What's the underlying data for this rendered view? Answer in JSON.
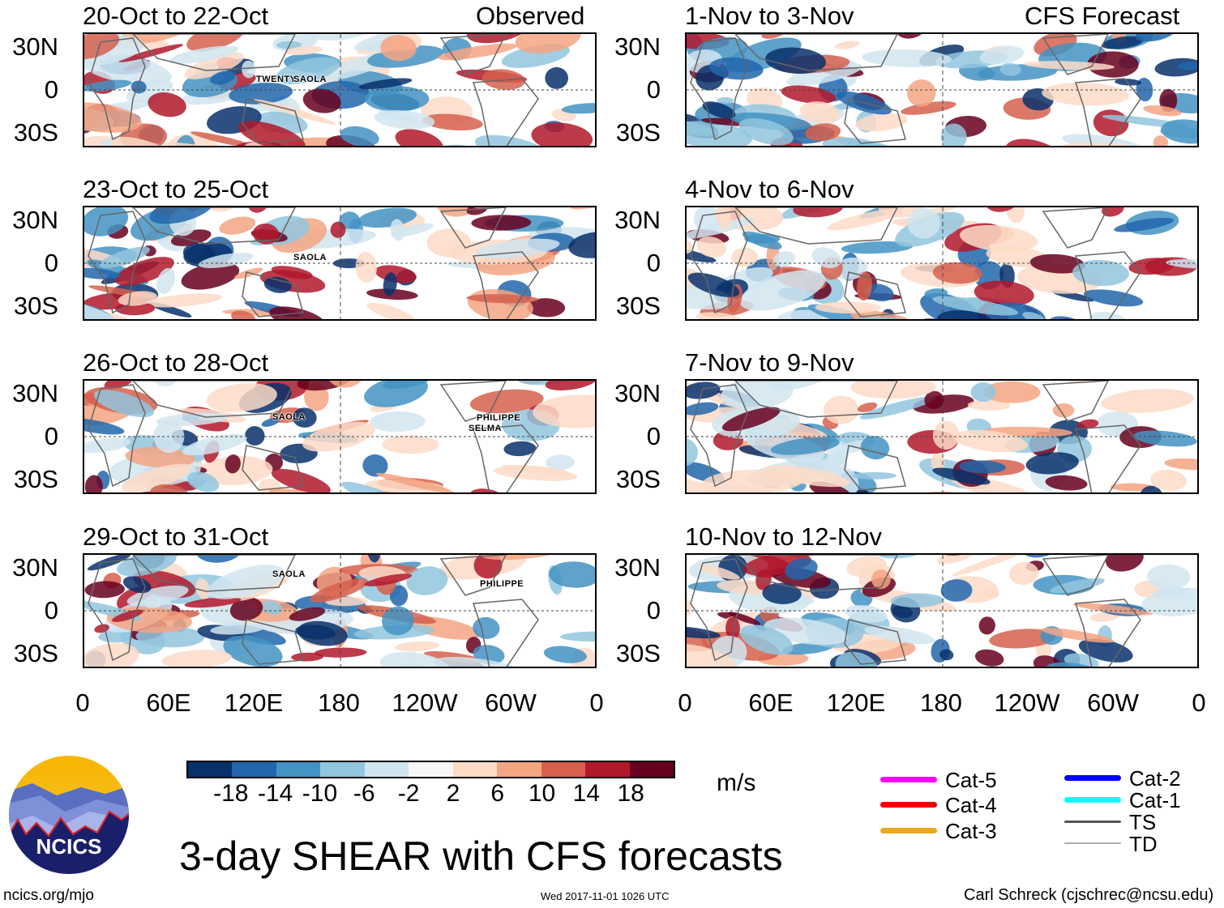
{
  "chart_data": {
    "type": "heatmap",
    "title": "3-day SHEAR with CFS forecasts",
    "units": "m/s",
    "colorbar": {
      "ticks": [
        "-18",
        "-14",
        "-10",
        "-6",
        "-2",
        "2",
        "6",
        "10",
        "14",
        "18"
      ],
      "colors": [
        "#08306b",
        "#2166ac",
        "#4393c3",
        "#92c5de",
        "#d1e5f0",
        "#f7f7f7",
        "#fddbc7",
        "#f4a582",
        "#d6604d",
        "#b2182b",
        "#67001f"
      ]
    },
    "y_ticks": [
      "30N",
      "0",
      "30S"
    ],
    "x_ticks": [
      "0",
      "60E",
      "120E",
      "180",
      "120W",
      "60W",
      "0"
    ],
    "columns": [
      {
        "label": "Observed",
        "panels": [
          {
            "title": "20-Oct to 22-Oct",
            "storms": [
              {
                "name": "TWENTY"
              },
              {
                "name": "SAOLA"
              }
            ]
          },
          {
            "title": "23-Oct to 25-Oct",
            "storms": [
              {
                "name": "SAOLA"
              }
            ]
          },
          {
            "title": "26-Oct to 28-Oct",
            "storms": [
              {
                "name": "SAOLA"
              },
              {
                "name": "PHILIPPE"
              },
              {
                "name": "SELMA"
              }
            ]
          },
          {
            "title": "29-Oct to 31-Oct",
            "storms": [
              {
                "name": "SAOLA"
              },
              {
                "name": "PHILIPPE"
              }
            ]
          }
        ]
      },
      {
        "label": "CFS Forecast",
        "panels": [
          {
            "title": "1-Nov to 3-Nov",
            "storms": []
          },
          {
            "title": "4-Nov to 6-Nov",
            "storms": []
          },
          {
            "title": "7-Nov to 9-Nov",
            "storms": []
          },
          {
            "title": "10-Nov to 12-Nov",
            "storms": []
          }
        ]
      }
    ]
  },
  "legend": {
    "items": [
      {
        "label": "Cat-5",
        "color": "#ff00ff"
      },
      {
        "label": "Cat-4",
        "color": "#ee0000"
      },
      {
        "label": "Cat-3",
        "color": "#e8a820"
      },
      {
        "label": "Cat-2",
        "color": "#0000ff"
      },
      {
        "label": "Cat-1",
        "color": "#00ffff"
      },
      {
        "label": "TS",
        "color": "#555555"
      },
      {
        "label": "TD",
        "color": "#aaaaaa"
      }
    ]
  },
  "logo": {
    "text": "NCICS"
  },
  "footer": {
    "url": "ncics.org/mjo",
    "timestamp": "Wed 2017-11-01 1026 UTC",
    "author": "Carl Schreck (cjschrec@ncsu.edu)"
  }
}
